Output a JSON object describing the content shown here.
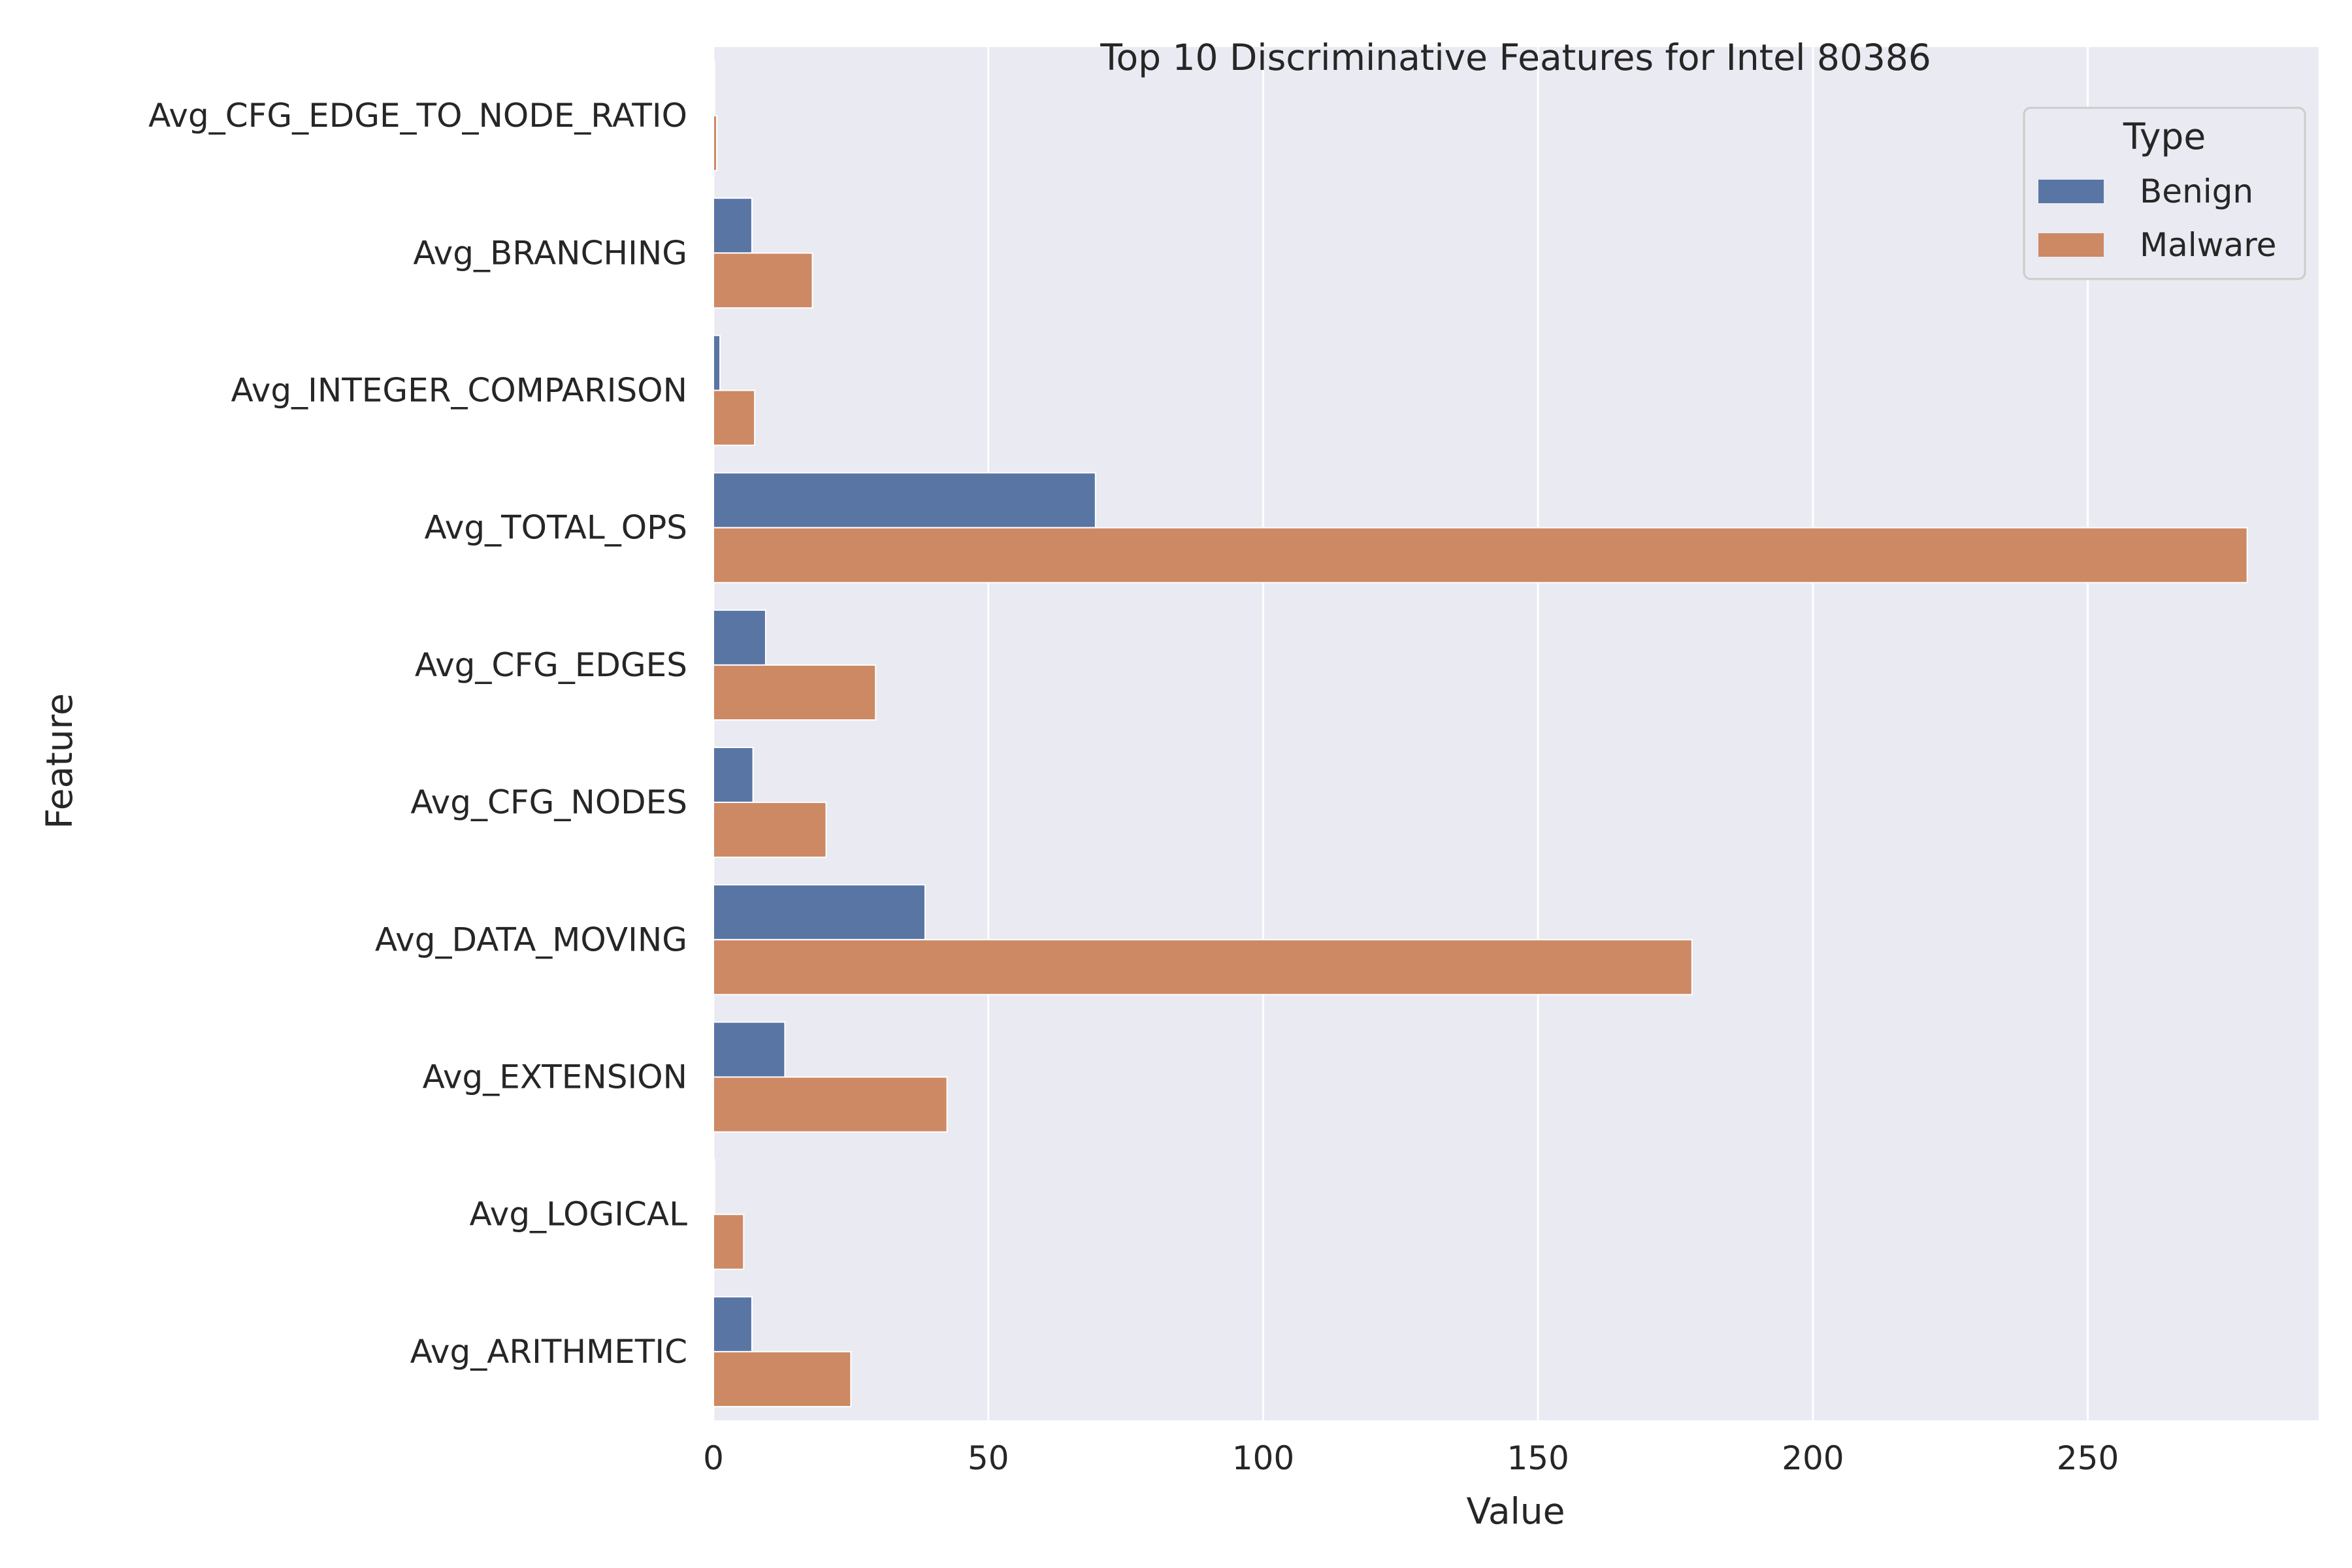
{
  "chart_data": {
    "type": "bar",
    "orientation": "horizontal",
    "title": "Top 10 Discriminative Features for Intel 80386",
    "xlabel": "Value",
    "ylabel": "Feature",
    "xlim": [
      0,
      292
    ],
    "xticks": [
      0,
      50,
      100,
      150,
      200,
      250
    ],
    "grid": true,
    "legend": {
      "title": "Type",
      "position": "top-right"
    },
    "categories": [
      "Avg_CFG_EDGE_TO_NODE_RATIO",
      "Avg_BRANCHING",
      "Avg_INTEGER_COMPARISON",
      "Avg_TOTAL_OPS",
      "Avg_CFG_EDGES",
      "Avg_CFG_NODES",
      "Avg_DATA_MOVING",
      "Avg_EXTENSION",
      "Avg_LOGICAL",
      "Avg_ARITHMETIC"
    ],
    "series": [
      {
        "name": "Benign",
        "color": "#5975a4",
        "values": [
          0.2,
          7,
          1.2,
          69.5,
          9.5,
          7.2,
          38.5,
          13,
          0.2,
          7
        ]
      },
      {
        "name": "Malware",
        "color": "#cc8963",
        "values": [
          0.6,
          18,
          7.5,
          279,
          29.5,
          20.5,
          178,
          42.5,
          5.5,
          25
        ]
      }
    ]
  }
}
